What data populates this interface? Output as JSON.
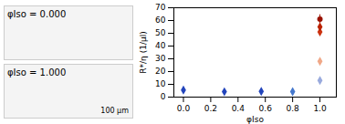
{
  "chart_data": {
    "type": "scatter",
    "xlabel": "φIso",
    "ylabel": "R*/η (1/μl)",
    "annotations": [
      "φIso = 0.000",
      "φIso = 1.000",
      "100 μm"
    ],
    "xlim": [
      -0.07,
      1.12
    ],
    "ylim": [
      0,
      70
    ],
    "xticks": [
      {
        "value": 0.0,
        "label": "0.0"
      },
      0.2,
      0.4,
      0.6,
      0.8,
      {
        "value": 1.0,
        "label": "1.0"
      }
    ],
    "yticks": [
      0,
      10,
      20,
      30,
      40,
      50,
      60,
      70
    ],
    "grid": false,
    "series": [
      {
        "x": [
          0.0
        ],
        "values": [
          5.5
        ],
        "yerr": [
          0.6
        ],
        "color": "#2244bb",
        "marker": "diamond"
      },
      {
        "x": [
          0.3
        ],
        "values": [
          4.2
        ],
        "yerr": [
          0.4
        ],
        "color": "#2244bb",
        "marker": "diamond"
      },
      {
        "x": [
          0.57
        ],
        "values": [
          4.5
        ],
        "yerr": [
          0.4
        ],
        "color": "#2244bb",
        "marker": "diamond"
      },
      {
        "x": [
          0.8
        ],
        "values": [
          4.3
        ],
        "yerr": [
          0.5
        ],
        "color": "#4477cc",
        "marker": "diamond"
      },
      {
        "x": [
          1.0
        ],
        "values": [
          13.0
        ],
        "yerr": [
          1.0
        ],
        "color": "#99aadd",
        "marker": "diamond"
      },
      {
        "x": [
          1.0
        ],
        "values": [
          28.0
        ],
        "yerr": [
          1.5
        ],
        "color": "#f0a888",
        "marker": "diamond"
      },
      {
        "x": [
          1.0
        ],
        "values": [
          51.0
        ],
        "yerr": [
          2.5
        ],
        "color": "#cc3311",
        "marker": "diamond"
      },
      {
        "x": [
          1.0
        ],
        "values": [
          55.0
        ],
        "yerr": [
          2.0
        ],
        "color": "#bb2200",
        "marker": "diamond"
      },
      {
        "x": [
          1.0
        ],
        "values": [
          61.0
        ],
        "yerr": [
          3.5
        ],
        "color": "#991100",
        "marker": "circle"
      }
    ]
  }
}
